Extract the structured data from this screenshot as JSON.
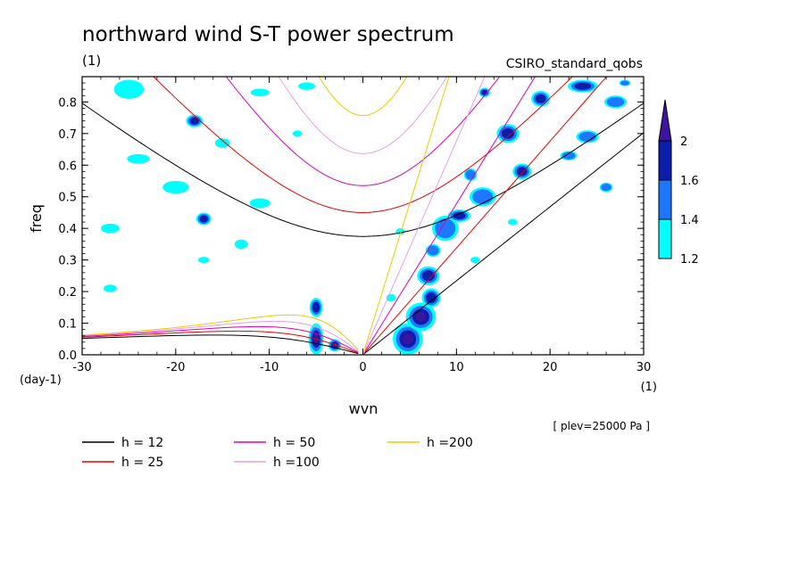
{
  "chart_data": {
    "type": "heatmap",
    "title": "northward wind S-T power spectrum",
    "subtitle_left": "(1)",
    "subtitle_right": "CSIRO_standard_qobs",
    "xlabel": "wvn",
    "ylabel": "freq",
    "x_unit_label": "(1)",
    "y_unit_label": "(day-1)",
    "xlim": [
      -30,
      30
    ],
    "ylim": [
      0,
      0.88
    ],
    "x_ticks": [
      -30,
      -20,
      -10,
      0,
      10,
      20,
      30
    ],
    "x_tick_labels": [
      "-30",
      "-20",
      "-10",
      "0",
      "10",
      "20",
      "30"
    ],
    "y_ticks": [
      0,
      0.1,
      0.2,
      0.3,
      0.4,
      0.5,
      0.6,
      0.7,
      0.8
    ],
    "y_tick_labels": [
      "0.0",
      "0.1",
      "0.2",
      "0.3",
      "0.4",
      "0.5",
      "0.6",
      "0.7",
      "0.8"
    ],
    "note": "[ plev=25000 Pa ]",
    "colorbar": {
      "levels": [
        1.2,
        1.4,
        1.6,
        2
      ],
      "labels": [
        "1.2",
        "1.4",
        "1.6",
        "2"
      ],
      "colors": [
        "#00ffff",
        "#1e78ff",
        "#0a1eaa",
        "#3c14a0"
      ]
    },
    "dispersion_curves": [
      {
        "name": "h = 12",
        "h": 12,
        "color": "#000000"
      },
      {
        "name": "h = 25",
        "h": 25,
        "color": "#e60000"
      },
      {
        "name": "h = 50",
        "h": 50,
        "color": "#dc00b4"
      },
      {
        "name": "h =100",
        "h": 100,
        "color": "#e6a0e6"
      },
      {
        "name": "h =200",
        "h": 200,
        "color": "#f0c800"
      }
    ],
    "contour_blobs": [
      {
        "x": 4.8,
        "y": 0.05,
        "rx": 1.6,
        "ry": 0.05,
        "level": 3
      },
      {
        "x": 6.2,
        "y": 0.12,
        "rx": 1.6,
        "ry": 0.045,
        "level": 3
      },
      {
        "x": 7.3,
        "y": 0.18,
        "rx": 1.0,
        "ry": 0.03,
        "level": 2
      },
      {
        "x": 7.0,
        "y": 0.25,
        "rx": 1.2,
        "ry": 0.03,
        "level": 2
      },
      {
        "x": 8.8,
        "y": 0.4,
        "rx": 1.4,
        "ry": 0.04,
        "level": 1
      },
      {
        "x": 10.3,
        "y": 0.44,
        "rx": 1.2,
        "ry": 0.02,
        "level": 2
      },
      {
        "x": 12.8,
        "y": 0.5,
        "rx": 1.4,
        "ry": 0.03,
        "level": 1
      },
      {
        "x": 17.0,
        "y": 0.58,
        "rx": 1.0,
        "ry": 0.025,
        "level": 2
      },
      {
        "x": 15.5,
        "y": 0.7,
        "rx": 1.2,
        "ry": 0.03,
        "level": 2
      },
      {
        "x": 19.0,
        "y": 0.81,
        "rx": 1.0,
        "ry": 0.025,
        "level": 2
      },
      {
        "x": 23.5,
        "y": 0.85,
        "rx": 1.6,
        "ry": 0.02,
        "level": 2
      },
      {
        "x": 27.0,
        "y": 0.8,
        "rx": 1.2,
        "ry": 0.02,
        "level": 1
      },
      {
        "x": 24.0,
        "y": 0.69,
        "rx": 1.2,
        "ry": 0.02,
        "level": 1
      },
      {
        "x": -5.0,
        "y": 0.05,
        "rx": 0.8,
        "ry": 0.05,
        "level": 3
      },
      {
        "x": -5.0,
        "y": 0.15,
        "rx": 0.7,
        "ry": 0.03,
        "level": 2
      },
      {
        "x": -3.0,
        "y": 0.03,
        "rx": 0.7,
        "ry": 0.02,
        "level": 3
      },
      {
        "x": -18.0,
        "y": 0.74,
        "rx": 0.9,
        "ry": 0.02,
        "level": 2
      },
      {
        "x": -17.0,
        "y": 0.43,
        "rx": 0.8,
        "ry": 0.02,
        "level": 2
      },
      {
        "x": 13.0,
        "y": 0.83,
        "rx": 0.6,
        "ry": 0.015,
        "level": 2
      },
      {
        "x": 28.0,
        "y": 0.86,
        "rx": 0.6,
        "ry": 0.01,
        "level": 1
      },
      {
        "x": 26.0,
        "y": 0.53,
        "rx": 0.7,
        "ry": 0.015,
        "level": 1
      },
      {
        "x": 22.0,
        "y": 0.63,
        "rx": 0.9,
        "ry": 0.015,
        "level": 1
      },
      {
        "x": 11.5,
        "y": 0.57,
        "rx": 0.7,
        "ry": 0.02,
        "level": 1
      },
      {
        "x": 7.5,
        "y": 0.33,
        "rx": 0.8,
        "ry": 0.02,
        "level": 1
      },
      {
        "x": 4.0,
        "y": 0.39,
        "rx": 0.5,
        "ry": 0.01,
        "level": 0
      },
      {
        "x": -25.0,
        "y": 0.84,
        "rx": 1.6,
        "ry": 0.03,
        "level": 0
      },
      {
        "x": -24.0,
        "y": 0.62,
        "rx": 1.2,
        "ry": 0.015,
        "level": 0
      },
      {
        "x": -27.0,
        "y": 0.4,
        "rx": 1.0,
        "ry": 0.015,
        "level": 0
      },
      {
        "x": -20.0,
        "y": 0.53,
        "rx": 1.4,
        "ry": 0.02,
        "level": 0
      },
      {
        "x": -15.0,
        "y": 0.67,
        "rx": 0.8,
        "ry": 0.015,
        "level": 0
      },
      {
        "x": -11.0,
        "y": 0.48,
        "rx": 1.1,
        "ry": 0.015,
        "level": 0
      },
      {
        "x": -13.0,
        "y": 0.35,
        "rx": 0.7,
        "ry": 0.015,
        "level": 0
      },
      {
        "x": -17.0,
        "y": 0.3,
        "rx": 0.6,
        "ry": 0.01,
        "level": 0
      },
      {
        "x": -27.0,
        "y": 0.21,
        "rx": 0.7,
        "ry": 0.012,
        "level": 0
      },
      {
        "x": -7.0,
        "y": 0.7,
        "rx": 0.5,
        "ry": 0.01,
        "level": 0
      },
      {
        "x": -11.0,
        "y": 0.83,
        "rx": 1.0,
        "ry": 0.012,
        "level": 0
      },
      {
        "x": -6.0,
        "y": 0.85,
        "rx": 0.9,
        "ry": 0.012,
        "level": 0
      },
      {
        "x": 3.0,
        "y": 0.18,
        "rx": 0.5,
        "ry": 0.012,
        "level": 0
      },
      {
        "x": 12.0,
        "y": 0.3,
        "rx": 0.5,
        "ry": 0.01,
        "level": 0
      },
      {
        "x": 16.0,
        "y": 0.42,
        "rx": 0.5,
        "ry": 0.01,
        "level": 0
      }
    ]
  }
}
